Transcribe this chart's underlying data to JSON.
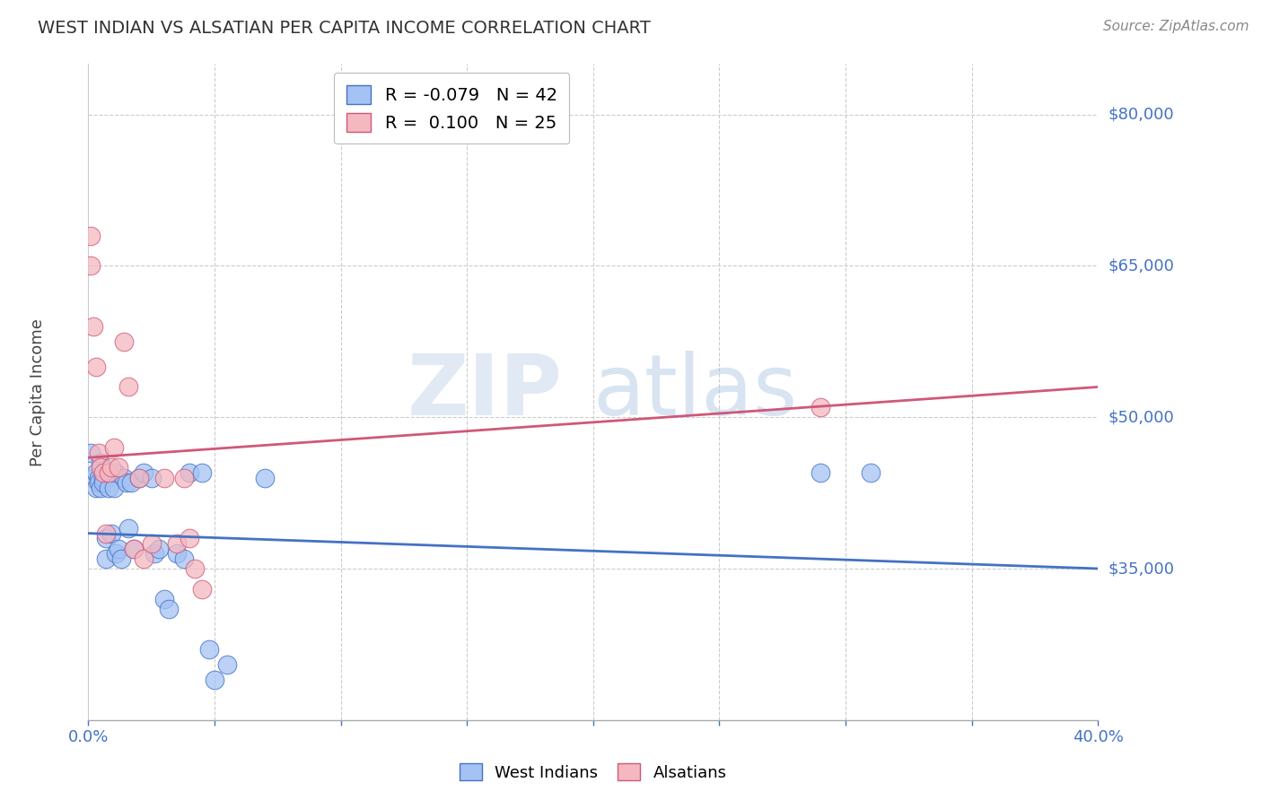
{
  "title": "WEST INDIAN VS ALSATIAN PER CAPITA INCOME CORRELATION CHART",
  "source": "Source: ZipAtlas.com",
  "ylabel": "Per Capita Income",
  "y_tick_values": [
    35000,
    50000,
    65000,
    80000
  ],
  "y_tick_labels": [
    "$35,000",
    "$50,000",
    "$65,000",
    "$80,000"
  ],
  "background_color": "#ffffff",
  "grid_color": "#cccccc",
  "blue_color": "#4472c4",
  "pink_color": "#d05878",
  "scatter_blue_fill": "#a4c2f4",
  "scatter_pink_fill": "#f4b8c0",
  "xlim": [
    0.0,
    0.4
  ],
  "ylim": [
    20000,
    85000
  ],
  "legend_R_blue": "R = -0.079",
  "legend_N_blue": "N = 42",
  "legend_R_pink": "R =  0.100",
  "legend_N_pink": "N = 25",
  "west_indian_x": [
    0.001,
    0.002,
    0.003,
    0.003,
    0.004,
    0.004,
    0.005,
    0.005,
    0.006,
    0.006,
    0.007,
    0.007,
    0.008,
    0.008,
    0.009,
    0.01,
    0.011,
    0.011,
    0.012,
    0.013,
    0.014,
    0.015,
    0.016,
    0.017,
    0.018,
    0.02,
    0.022,
    0.025,
    0.026,
    0.028,
    0.03,
    0.032,
    0.035,
    0.038,
    0.04,
    0.045,
    0.048,
    0.05,
    0.055,
    0.07,
    0.29,
    0.31
  ],
  "west_indian_y": [
    46500,
    44000,
    44500,
    43000,
    44000,
    43500,
    45500,
    43000,
    44000,
    43500,
    38000,
    36000,
    44500,
    43000,
    38500,
    43000,
    44500,
    36500,
    37000,
    36000,
    44000,
    43500,
    39000,
    43500,
    37000,
    44000,
    44500,
    44000,
    36500,
    37000,
    32000,
    31000,
    36500,
    36000,
    44500,
    44500,
    27000,
    24000,
    25500,
    44000,
    44500,
    44500
  ],
  "alsatian_x": [
    0.001,
    0.001,
    0.002,
    0.003,
    0.004,
    0.005,
    0.006,
    0.007,
    0.008,
    0.009,
    0.01,
    0.012,
    0.014,
    0.016,
    0.018,
    0.02,
    0.022,
    0.025,
    0.03,
    0.035,
    0.038,
    0.04,
    0.042,
    0.045,
    0.29
  ],
  "alsatian_y": [
    68000,
    65000,
    59000,
    55000,
    46500,
    45000,
    44500,
    38500,
    44500,
    45000,
    47000,
    45000,
    57500,
    53000,
    37000,
    44000,
    36000,
    37500,
    44000,
    37500,
    44000,
    38000,
    35000,
    33000,
    51000
  ],
  "blue_line_x0": 0.0,
  "blue_line_x1": 0.4,
  "blue_line_y0": 38500,
  "blue_line_y1": 35000,
  "pink_line_x0": 0.0,
  "pink_line_x1": 0.4,
  "pink_line_y0": 46000,
  "pink_line_y1": 53000
}
